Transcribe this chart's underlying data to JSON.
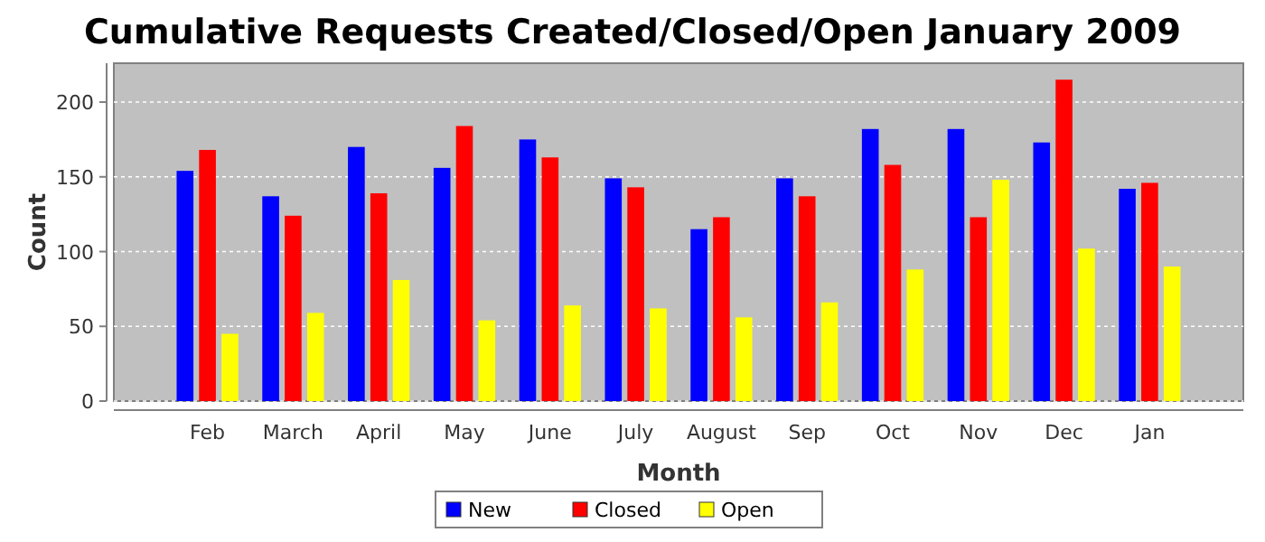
{
  "chart_data": {
    "type": "bar",
    "title": "Cumulative Requests Created/Closed/Open January 2009",
    "xlabel": "Month",
    "ylabel": "Count",
    "categories": [
      "Feb",
      "March",
      "April",
      "May",
      "June",
      "July",
      "August",
      "Sep",
      "Oct",
      "Nov",
      "Dec",
      "Jan"
    ],
    "series": [
      {
        "name": "New",
        "color": "#0000ff",
        "values": [
          154,
          137,
          170,
          156,
          175,
          149,
          115,
          149,
          182,
          182,
          173,
          142
        ]
      },
      {
        "name": "Closed",
        "color": "#ff0000",
        "values": [
          168,
          124,
          139,
          184,
          163,
          143,
          123,
          137,
          158,
          123,
          215,
          146
        ]
      },
      {
        "name": "Open",
        "color": "#ffff00",
        "values": [
          45,
          59,
          81,
          54,
          64,
          62,
          56,
          66,
          88,
          148,
          102,
          90
        ]
      }
    ],
    "ylim": [
      0,
      226
    ],
    "yticks": [
      0,
      50,
      100,
      150,
      200
    ],
    "grid": "y",
    "legend": "bottom"
  }
}
